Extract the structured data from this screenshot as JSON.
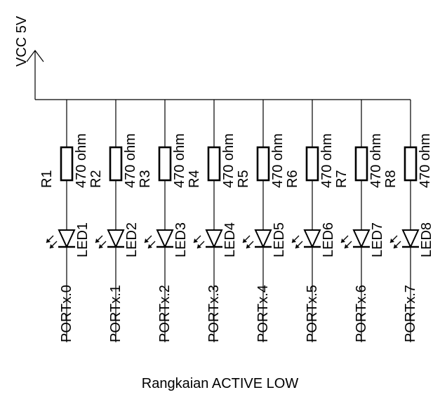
{
  "supply_label": "VCC 5V",
  "caption": "Rangkaian ACTIVE LOW",
  "channels": [
    {
      "resistor": "R1",
      "resistor_value": "470 ohm",
      "led": "LED1",
      "port": "PORTx.0"
    },
    {
      "resistor": "R2",
      "resistor_value": "470 ohm",
      "led": "LED2",
      "port": "PORTx.1"
    },
    {
      "resistor": "R3",
      "resistor_value": "470 ohm",
      "led": "LED3",
      "port": "PORTx.2"
    },
    {
      "resistor": "R4",
      "resistor_value": "470 ohm",
      "led": "LED4",
      "port": "PORTx.3"
    },
    {
      "resistor": "R5",
      "resistor_value": "470 ohm",
      "led": "LED5",
      "port": "PORTx.4"
    },
    {
      "resistor": "R6",
      "resistor_value": "470 ohm",
      "led": "LED6",
      "port": "PORTx.5"
    },
    {
      "resistor": "R7",
      "resistor_value": "470 ohm",
      "led": "LED7",
      "port": "PORTx.6"
    },
    {
      "resistor": "R8",
      "resistor_value": "470 ohm",
      "led": "LED8",
      "port": "PORTx.7"
    }
  ]
}
